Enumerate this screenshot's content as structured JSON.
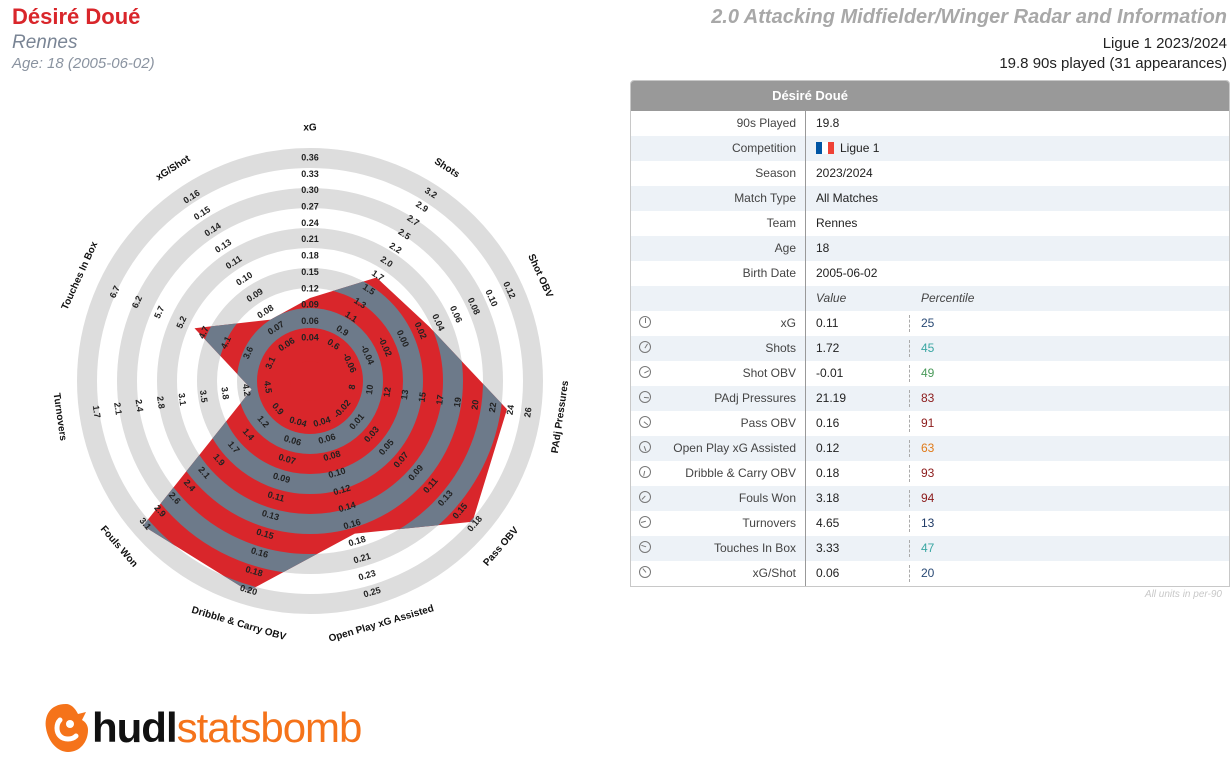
{
  "header": {
    "player": "Désiré Doué",
    "team": "Rennes",
    "age_line": "Age: 18 (2005-06-02)",
    "title": "2.0 Attacking Midfielder/Winger Radar and Information",
    "competition_season": "Ligue 1 2023/2024",
    "played": "19.8 90s played (31 appearances)"
  },
  "chart_data": {
    "type": "radar",
    "colors": {
      "player_fill": "#d9262b",
      "overlay_fill": "#6d7a8a",
      "ring": "#dddddd"
    },
    "axes": [
      {
        "name": "xG",
        "value": 0.11,
        "percentile": 25,
        "ticks": [
          "0.04",
          "0.06",
          "0.09",
          "0.12",
          "0.15",
          "0.18",
          "0.21",
          "0.24",
          "0.27",
          "0.30",
          "0.33",
          "0.36"
        ]
      },
      {
        "name": "Shots",
        "value": 1.72,
        "percentile": 45,
        "ticks": [
          "0.6",
          "0.9",
          "1.1",
          "1.3",
          "1.5",
          "1.7",
          "2.0",
          "2.2",
          "2.5",
          "2.7",
          "2.9",
          "3.2"
        ]
      },
      {
        "name": "Shot OBV",
        "value": -0.01,
        "percentile": 49,
        "ticks": [
          "-0.06",
          "-0.04",
          "-0.02",
          "0.00",
          "0.02",
          "0.04",
          "0.06",
          "0.08",
          "0.10",
          "0.12"
        ]
      },
      {
        "name": "PAdj Pressures",
        "value": 21.19,
        "percentile": 83,
        "ticks": [
          "8",
          "10",
          "12",
          "13",
          "15",
          "17",
          "19",
          "20",
          "22",
          "24",
          "26"
        ]
      },
      {
        "name": "Pass OBV",
        "value": 0.16,
        "percentile": 91,
        "ticks": [
          "-0.02",
          "0.01",
          "0.03",
          "0.05",
          "0.07",
          "0.09",
          "0.11",
          "0.13",
          "0.15",
          "0.18"
        ]
      },
      {
        "name": "Open Play xG Assisted",
        "value": 0.12,
        "percentile": 63,
        "ticks": [
          "0.04",
          "0.06",
          "0.08",
          "0.10",
          "0.12",
          "0.14",
          "0.16",
          "0.18",
          "0.21",
          "0.23",
          "0.25"
        ]
      },
      {
        "name": "Dribble & Carry OBV",
        "value": 0.18,
        "percentile": 93,
        "ticks": [
          "0.04",
          "0.06",
          "0.07",
          "0.09",
          "0.11",
          "0.13",
          "0.15",
          "0.16",
          "0.18",
          "0.20"
        ]
      },
      {
        "name": "Fouls Won",
        "value": 3.18,
        "percentile": 94,
        "ticks": [
          "0.9",
          "1.2",
          "1.4",
          "1.7",
          "1.9",
          "2.1",
          "2.4",
          "2.6",
          "2.9",
          "3.1"
        ]
      },
      {
        "name": "Turnovers",
        "value": 4.65,
        "percentile": 13,
        "ticks": [
          "4.5",
          "4.2",
          "3.8",
          "3.5",
          "3.1",
          "2.8",
          "2.4",
          "2.1",
          "1.7"
        ]
      },
      {
        "name": "Touches In Box",
        "value": 3.33,
        "percentile": 47,
        "ticks": [
          "3.1",
          "3.6",
          "4.1",
          "4.7",
          "5.2",
          "5.7",
          "6.2",
          "6.7"
        ]
      },
      {
        "name": "xG/Shot",
        "value": 0.06,
        "percentile": 20,
        "ticks": [
          "0.06",
          "0.07",
          "0.08",
          "0.09",
          "0.10",
          "0.11",
          "0.13",
          "0.14",
          "0.15",
          "0.16"
        ]
      }
    ]
  },
  "table": {
    "title": "Désiré Doué",
    "info_rows": [
      {
        "label": "90s Played",
        "value": "19.8"
      },
      {
        "label": "Competition",
        "value": "Ligue 1"
      },
      {
        "label": "Season",
        "value": "2023/2024"
      },
      {
        "label": "Match Type",
        "value": "All Matches"
      },
      {
        "label": "Team",
        "value": "Rennes"
      },
      {
        "label": "Age",
        "value": "18"
      },
      {
        "label": "Birth Date",
        "value": "2005-06-02"
      }
    ],
    "col_value": "Value",
    "col_percentile": "Percentile",
    "stat_rows": [
      {
        "label": "xG",
        "value": "0.11",
        "percentile": "25",
        "color": "#2a4a75"
      },
      {
        "label": "Shots",
        "value": "1.72",
        "percentile": "45",
        "color": "#3aa7a3"
      },
      {
        "label": "Shot OBV",
        "value": "-0.01",
        "percentile": "49",
        "color": "#4a9a5a"
      },
      {
        "label": "PAdj Pressures",
        "value": "21.19",
        "percentile": "83",
        "color": "#8b1a1a"
      },
      {
        "label": "Pass OBV",
        "value": "0.16",
        "percentile": "91",
        "color": "#8b1a1a"
      },
      {
        "label": "Open Play xG Assisted",
        "value": "0.12",
        "percentile": "63",
        "color": "#e07b1a"
      },
      {
        "label": "Dribble & Carry OBV",
        "value": "0.18",
        "percentile": "93",
        "color": "#8b1a1a"
      },
      {
        "label": "Fouls Won",
        "value": "3.18",
        "percentile": "94",
        "color": "#8b1a1a"
      },
      {
        "label": "Turnovers",
        "value": "4.65",
        "percentile": "13",
        "color": "#1f3a66"
      },
      {
        "label": "Touches In Box",
        "value": "3.33",
        "percentile": "47",
        "color": "#3aa7a3"
      },
      {
        "label": "xG/Shot",
        "value": "0.06",
        "percentile": "20",
        "color": "#2a4a75"
      }
    ],
    "footnote": "All units in per-90"
  },
  "logo": {
    "brand_a": "hudl",
    "brand_b": "statsbomb",
    "accent": "#f5731a"
  }
}
